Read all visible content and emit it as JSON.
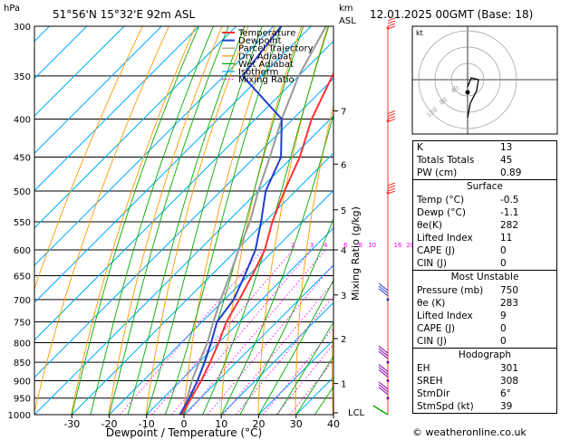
{
  "chart_data": {
    "type": "skew-t",
    "location_label": "51°56'N  15°32'E  92m  ASL",
    "time_label": "12.01.2025  00GMT  (Base: 18)",
    "y_unit": "hPa",
    "km_unit": "km",
    "km_unit2": "ASL",
    "xlabel": "Dewpoint / Temperature (°C)",
    "ylabel_right": "Mixing Ratio (g/kg)",
    "pressure_levels": [
      300,
      350,
      400,
      450,
      500,
      550,
      600,
      650,
      700,
      750,
      800,
      850,
      900,
      950,
      1000
    ],
    "x_ticks": [
      -30,
      -20,
      -10,
      0,
      10,
      20,
      30,
      40
    ],
    "xlim": [
      -40,
      40
    ],
    "ylim": [
      1000,
      300
    ],
    "km_levels": [
      {
        "km": 1,
        "p": 908
      },
      {
        "km": 2,
        "p": 790
      },
      {
        "km": 3,
        "p": 690
      },
      {
        "km": 4,
        "p": 600
      },
      {
        "km": 5,
        "p": 530
      },
      {
        "km": 6,
        "p": 460
      },
      {
        "km": 7,
        "p": 390
      }
    ],
    "km_labels": [
      "1",
      "2",
      "3",
      "4",
      "5",
      "6",
      "7"
    ],
    "lcl_label": "LCL",
    "mixing_ratios": [
      1,
      2,
      3,
      4,
      6,
      8,
      10,
      16,
      20,
      25
    ],
    "mixing_ratio_labels": [
      "1",
      "2",
      "3",
      "4",
      "6",
      "8",
      "10",
      "16",
      "20",
      "25"
    ],
    "legend": [
      "Temperature",
      "Dewpoint",
      "Parcel Trajectory",
      "Dry Adiabat",
      "Wet Adiabat",
      "Isotherm",
      "Mixing Ratio"
    ],
    "colors": {
      "temperature": "#ff3333",
      "dewpoint": "#1f3fcc",
      "parcel": "#999999",
      "dry_adiabat": "#ff9900",
      "wet_adiabat": "#00aa00",
      "isotherm": "#00aaff",
      "mixing_ratio": "#ff00ff"
    },
    "temperature": [
      [
        1000,
        -0.5
      ],
      [
        950,
        -2.5
      ],
      [
        900,
        -4.5
      ],
      [
        850,
        -7
      ],
      [
        800,
        -10
      ],
      [
        750,
        -13.5
      ],
      [
        700,
        -16
      ],
      [
        650,
        -19
      ],
      [
        600,
        -22.5
      ],
      [
        550,
        -28
      ],
      [
        500,
        -33
      ],
      [
        450,
        -38
      ],
      [
        400,
        -45
      ],
      [
        350,
        -51
      ],
      [
        300,
        -58
      ]
    ],
    "dewpoint": [
      [
        1000,
        -1.1
      ],
      [
        950,
        -3
      ],
      [
        900,
        -5.5
      ],
      [
        850,
        -8.5
      ],
      [
        800,
        -12
      ],
      [
        750,
        -16
      ],
      [
        700,
        -17.5
      ],
      [
        650,
        -21
      ],
      [
        600,
        -25
      ],
      [
        550,
        -31
      ],
      [
        500,
        -38
      ],
      [
        450,
        -43
      ],
      [
        400,
        -53
      ],
      [
        350,
        -75
      ],
      [
        300,
        -78
      ]
    ],
    "parcel": [
      [
        1000,
        -0.5
      ],
      [
        950,
        -3.5
      ],
      [
        900,
        -7
      ],
      [
        850,
        -10
      ],
      [
        800,
        -13
      ],
      [
        750,
        -17
      ],
      [
        700,
        -21
      ],
      [
        650,
        -25
      ],
      [
        600,
        -29.5
      ],
      [
        550,
        -34
      ],
      [
        500,
        -40
      ],
      [
        450,
        -46
      ],
      [
        400,
        -53
      ],
      [
        350,
        -60
      ],
      [
        300,
        -66
      ]
    ]
  },
  "indices": {
    "rows": [
      {
        "label": "K",
        "value": "13"
      },
      {
        "label": "Totals Totals",
        "value": "45"
      },
      {
        "label": "PW (cm)",
        "value": "0.89"
      }
    ],
    "surface_title": "Surface",
    "surface": [
      {
        "label": "Temp (°C)",
        "value": "-0.5"
      },
      {
        "label": "Dewp (°C)",
        "value": "-1.1"
      },
      {
        "label": "θe(K)",
        "value": "282"
      },
      {
        "label": "Lifted Index",
        "value": "11"
      },
      {
        "label": "CAPE (J)",
        "value": "0"
      },
      {
        "label": "CIN (J)",
        "value": "0"
      }
    ],
    "mu_title": "Most Unstable",
    "mu": [
      {
        "label": "Pressure (mb)",
        "value": "750"
      },
      {
        "label": "θe (K)",
        "value": "283"
      },
      {
        "label": "Lifted Index",
        "value": "9"
      },
      {
        "label": "CAPE (J)",
        "value": "0"
      },
      {
        "label": "CIN (J)",
        "value": "0"
      }
    ],
    "hodo_title": "Hodograph",
    "hodo": [
      {
        "label": "EH",
        "value": "301"
      },
      {
        "label": "SREH",
        "value": "308"
      },
      {
        "label": "StmDir",
        "value": "6°"
      },
      {
        "label": "StmSpd (kt)",
        "value": "39"
      }
    ]
  },
  "hodograph": {
    "unit_label": "kt",
    "ring_labels": [
      "40",
      "80",
      "120"
    ]
  },
  "footer": "© weatheronline.co.uk"
}
